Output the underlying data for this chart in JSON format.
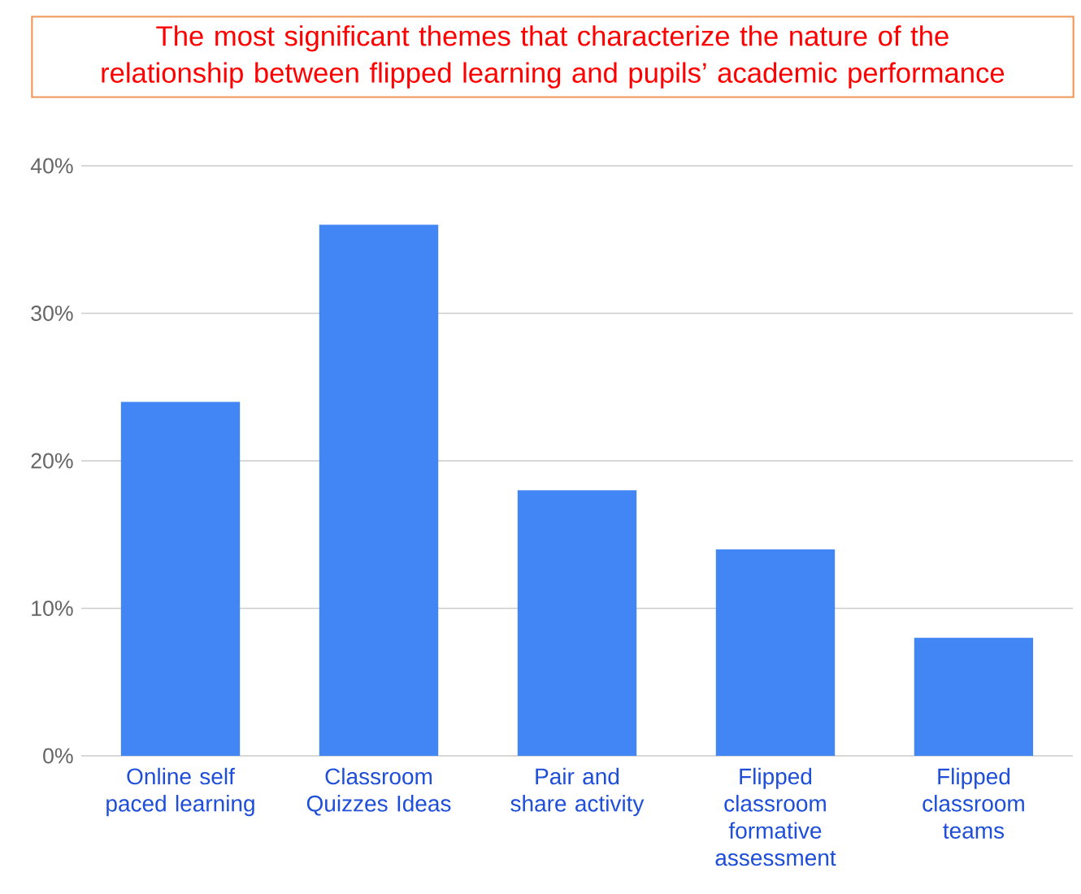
{
  "chart_data": {
    "type": "bar",
    "title": "The most significant themes that characterize the nature of the relationship between flipped learning and pupils’ academic performance",
    "categories": [
      "Online self paced learning",
      "Classroom Quizzes Ideas",
      "Pair and share activity",
      "Flipped classroom formative assessment",
      "Flipped classroom teams"
    ],
    "values": [
      24,
      36,
      18,
      14,
      8
    ],
    "color": "#4285f4",
    "ylim": [
      0,
      40
    ],
    "yticks": [
      {
        "value": 0,
        "label": "0%"
      },
      {
        "value": 10,
        "label": "10%"
      },
      {
        "value": 20,
        "label": "20%"
      },
      {
        "value": 30,
        "label": "30%"
      },
      {
        "value": 40,
        "label": "40%"
      }
    ],
    "grid": "y"
  }
}
